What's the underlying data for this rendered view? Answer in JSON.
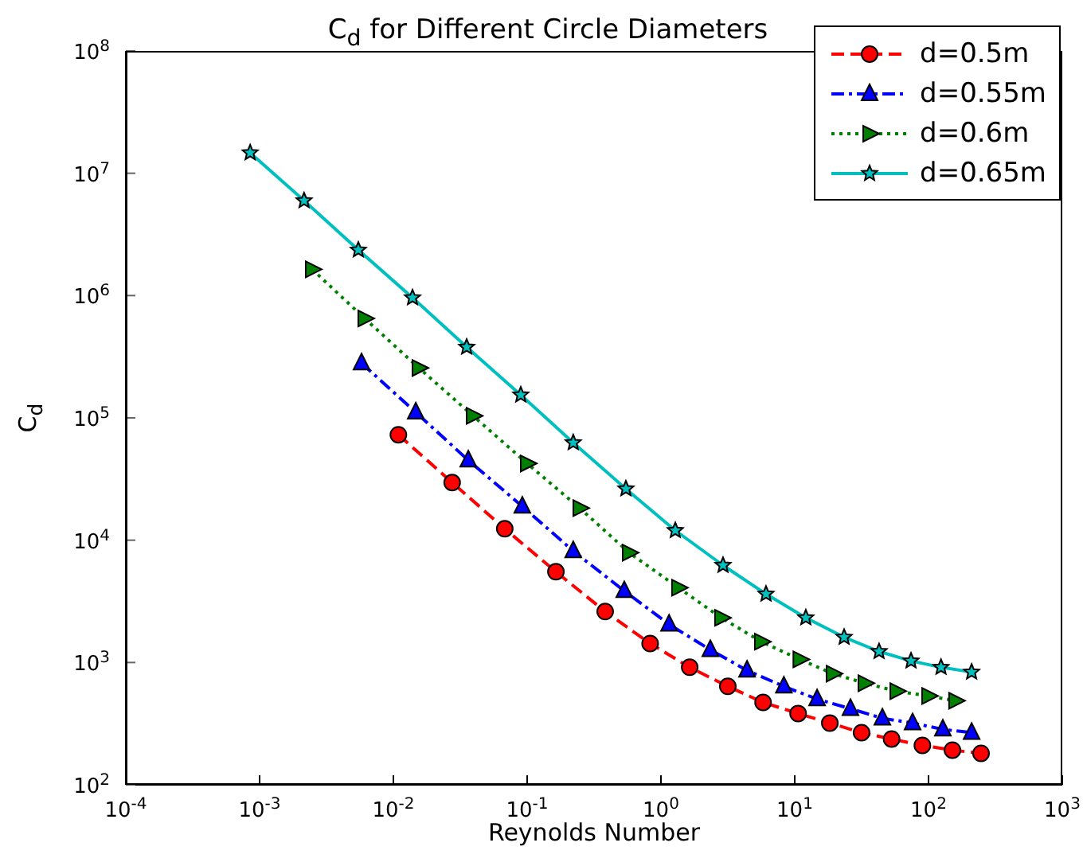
{
  "chart_data": {
    "type": "line",
    "title": "C$_{d}$ for Different Circle Diameters",
    "xlabel": "Reynolds Number",
    "ylabel": "C$_{d}$",
    "log": "xy",
    "grid": false,
    "legend": "top right",
    "xlim": [
      0.0001,
      1000
    ],
    "ylim": [
      100,
      100000000
    ],
    "xticks": [
      {
        "value": 0.0001,
        "label": "10$^{-4}$"
      },
      {
        "value": 0.001,
        "label": "10$^{-3}$"
      },
      {
        "value": 0.01,
        "label": "10$^{-2}$"
      },
      {
        "value": 0.1,
        "label": "10$^{-1}$"
      },
      {
        "value": 1,
        "label": "10$^{0}$"
      },
      {
        "value": 10,
        "label": "10$^{1}$"
      },
      {
        "value": 100,
        "label": "10$^{2}$"
      },
      {
        "value": 1000,
        "label": "10$^{3}$"
      }
    ],
    "yticks": [
      {
        "value": 100,
        "label": "10$^{2}$"
      },
      {
        "value": 1000,
        "label": "10$^{3}$"
      },
      {
        "value": 10000,
        "label": "10$^{4}$"
      },
      {
        "value": 100000,
        "label": "10$^{5}$"
      },
      {
        "value": 1000000,
        "label": "10$^{6}$"
      },
      {
        "value": 10000000,
        "label": "10$^{7}$"
      },
      {
        "value": 100000000,
        "label": "10$^{8}$"
      }
    ],
    "series": [
      {
        "name": "d=0.5m",
        "color": "#ff0000",
        "marker": "circle",
        "line_style": "dashed",
        "x": [
          0.0109,
          0.0275,
          0.068,
          0.164,
          0.383,
          0.83,
          1.64,
          3.16,
          5.8,
          10.6,
          18.3,
          31.6,
          53,
          90,
          151,
          247
        ],
        "values": [
          72800,
          29600,
          12400,
          5520,
          2610,
          1430,
          914,
          638,
          472,
          383,
          320,
          267,
          237,
          210,
          192,
          181
        ]
      },
      {
        "name": "d=0.55m",
        "color": "#0000ff",
        "marker": "triangle",
        "line_style": "dashdot",
        "x": [
          0.00578,
          0.0147,
          0.0363,
          0.092,
          0.221,
          0.532,
          1.15,
          2.34,
          4.4,
          8.3,
          14.7,
          26.1,
          45.2,
          76,
          128,
          210
        ],
        "values": [
          280600,
          111000,
          45000,
          18900,
          8150,
          3850,
          2050,
          1270,
          861,
          638,
          502,
          419,
          350,
          320,
          284,
          267
        ]
      },
      {
        "name": "d=0.6m",
        "color": "#008000",
        "marker": "triangle-right",
        "line_style": "dotted",
        "x": [
          0.00247,
          0.0061,
          0.0155,
          0.0394,
          0.1,
          0.247,
          0.578,
          1.35,
          2.83,
          5.62,
          10.9,
          19.3,
          33.4,
          57.8,
          100,
          159
        ],
        "values": [
          1640000,
          650000,
          256000,
          104000,
          42400,
          18300,
          7910,
          4090,
          2320,
          1480,
          1060,
          811,
          677,
          583,
          533,
          487
        ]
      },
      {
        "name": "d=0.65m",
        "color": "#00bfbf",
        "marker": "star",
        "line_style": "solid",
        "x": [
          0.00085,
          0.00215,
          0.00547,
          0.0139,
          0.0353,
          0.0896,
          0.221,
          0.547,
          1.28,
          2.91,
          6.1,
          12.1,
          23.4,
          42.7,
          74,
          124,
          210
        ],
        "values": [
          14700000,
          5970000,
          2360000,
          960000,
          379000,
          154000,
          62700,
          26300,
          12000,
          6230,
          3630,
          2320,
          1610,
          1230,
          1030,
          914,
          835
        ]
      }
    ]
  }
}
